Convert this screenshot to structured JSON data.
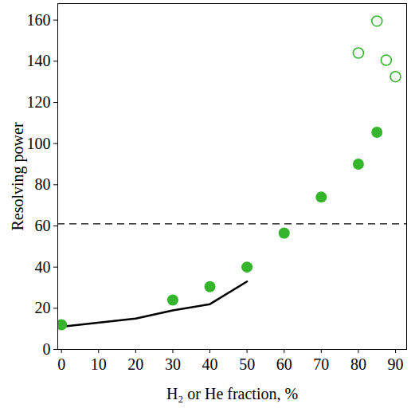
{
  "chart_data": {
    "type": "scatter",
    "xlabel": "H₂ or He fraction, %",
    "ylabel": "Resolving power",
    "xlim": [
      -1,
      93
    ],
    "ylim": [
      0,
      168
    ],
    "xticks": [
      0,
      10,
      20,
      30,
      40,
      50,
      60,
      70,
      80,
      90
    ],
    "yticks": [
      0,
      20,
      40,
      60,
      80,
      100,
      120,
      140,
      160
    ],
    "grid": false,
    "series": [
      {
        "type": "line",
        "color": "#000000",
        "line_style": "solid",
        "x": [
          0,
          20,
          30,
          40,
          50
        ],
        "values": [
          11,
          15,
          19,
          22,
          33
        ]
      },
      {
        "type": "scatter",
        "marker": "filled circle",
        "color": "#35b52c",
        "x": [
          0,
          30,
          40,
          50,
          60,
          70,
          80,
          85
        ],
        "values": [
          12,
          24,
          30.5,
          40,
          56.5,
          74,
          90,
          105.5
        ]
      },
      {
        "type": "scatter",
        "marker": "open circle",
        "color": "#35b52c",
        "x": [
          80,
          85,
          87.5,
          90
        ],
        "values": [
          144,
          159.5,
          140.5,
          132.5
        ]
      },
      {
        "type": "hline",
        "color": "#000000",
        "line_style": "dashed",
        "values": [
          61
        ]
      }
    ]
  }
}
